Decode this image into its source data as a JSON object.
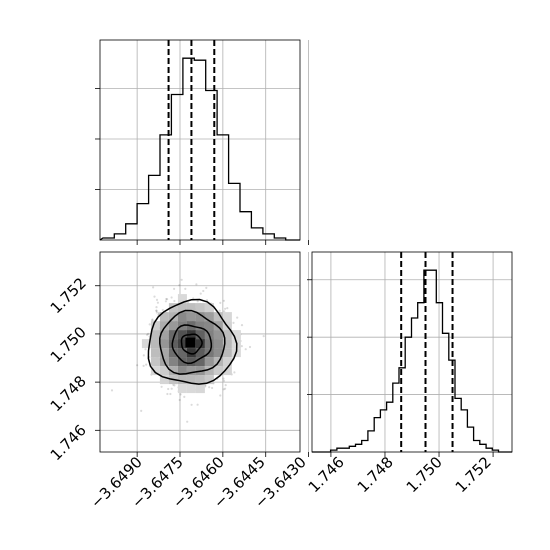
{
  "chart_data": [
    {
      "type": "histogram",
      "panel": "marginal-x",
      "x_edges": [
        -3.6502,
        -3.6498,
        -3.6494,
        -3.649,
        -3.6486,
        -3.6482,
        -3.6478,
        -3.6474,
        -3.647,
        -3.6466,
        -3.6462,
        -3.6458,
        -3.6454,
        -3.645,
        -3.6446,
        -3.6442,
        -3.6438,
        -3.6434
      ],
      "counts": [
        1,
        3,
        8,
        18,
        32,
        52,
        72,
        90,
        89,
        74,
        52,
        28,
        14,
        6,
        3,
        1,
        0
      ],
      "quantiles": [
        -3.6479,
        -3.6471,
        -3.6463
      ],
      "xlim": [
        -3.6503,
        -3.6433
      ],
      "grid": true
    },
    {
      "type": "histogram",
      "panel": "marginal-y",
      "x_edges": [
        1.7453,
        1.74553,
        1.74576,
        1.74599,
        1.74622,
        1.74645,
        1.74668,
        1.74691,
        1.74714,
        1.74737,
        1.7476,
        1.74783,
        1.74806,
        1.74829,
        1.74852,
        1.74875,
        1.74898,
        1.74921,
        1.74944,
        1.74967,
        1.7499,
        1.75013,
        1.75036,
        1.75059,
        1.75082,
        1.75105,
        1.75128,
        1.75151,
        1.75174,
        1.75197,
        1.7522,
        1.75243,
        1.7527
      ],
      "counts": [
        0,
        0,
        0,
        1,
        2,
        2,
        3,
        4,
        6,
        11,
        18,
        22,
        26,
        36,
        44,
        60,
        70,
        78,
        95,
        95,
        78,
        62,
        48,
        28,
        22,
        13,
        6,
        4,
        2,
        1,
        0,
        0
      ],
      "quantiles": [
        1.7486,
        1.7495,
        1.7505
      ],
      "xlim": [
        1.7453,
        1.7527
      ],
      "xticks": [
        "1.746",
        "1.748",
        "1.750",
        "1.752"
      ],
      "grid": true
    },
    {
      "type": "scatter",
      "panel": "joint",
      "x_center": -3.6471,
      "y_center": 1.7496,
      "x_std": 0.00065,
      "y_std": 0.0008,
      "contour_levels": 4,
      "xlim": [
        -3.6503,
        -3.6433
      ],
      "ylim": [
        1.7451,
        1.7534
      ],
      "xticks": [
        "−3.6490",
        "−3.6475",
        "−3.6460",
        "−3.6445",
        "−3.6430"
      ],
      "yticks": [
        "1.746",
        "1.748",
        "1.750",
        "1.752"
      ],
      "grid": true
    }
  ]
}
